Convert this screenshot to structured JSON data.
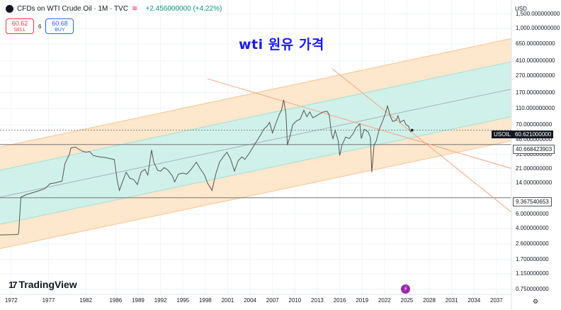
{
  "header": {
    "symbol_title": "CFDs on WTI Crude Oil · 1M · TVC",
    "change": "+2.456000000 (+4.22%)",
    "wave_icon": "wave-icon",
    "sell_price": "60.62",
    "sell_label": "SELL",
    "spread": "6",
    "buy_price": "60.68",
    "buy_label": "BUY"
  },
  "annotation": "wti 원유 가격",
  "currency": "USD",
  "price_labels": {
    "symbol": "USOIL",
    "current": "60.621000000",
    "level_upper": "40.668423903",
    "level_lower": "9.367540653"
  },
  "branding": {
    "name": "TradingView",
    "icon": "tradingview-logo-icon"
  },
  "colors": {
    "outer_band": "#fde3c4",
    "inner_band": "#c8efe6",
    "price_line": "#555555",
    "trendline": "#f4a582",
    "axis_text": "#131722"
  },
  "chart_data": {
    "type": "line",
    "scale": "log",
    "ylim": [
      0.65,
      2200
    ],
    "xlim": [
      1970.5,
      2039
    ],
    "y_ticks": [
      {
        "value": 1500,
        "label": "1,500.000000000"
      },
      {
        "value": 1000,
        "label": "1,000.000000000"
      },
      {
        "value": 650,
        "label": "650.000000000"
      },
      {
        "value": 410,
        "label": "410.000000000"
      },
      {
        "value": 270,
        "label": "270.000000000"
      },
      {
        "value": 170,
        "label": "170.000000000"
      },
      {
        "value": 110,
        "label": "110.000000000"
      },
      {
        "value": 70,
        "label": "70.000000000"
      },
      {
        "value": 46,
        "label": "46.000000000"
      },
      {
        "value": 31,
        "label": "31.000000000"
      },
      {
        "value": 21,
        "label": "21.000000000"
      },
      {
        "value": 14,
        "label": "14.000000000"
      },
      {
        "value": 6,
        "label": "6.000000000"
      },
      {
        "value": 4,
        "label": "4.000000000"
      },
      {
        "value": 2.6,
        "label": "2.600000000"
      },
      {
        "value": 1.7,
        "label": "1.700000000"
      },
      {
        "value": 1.15,
        "label": "1.150000000"
      },
      {
        "value": 0.75,
        "label": "0.750000000"
      }
    ],
    "x_ticks": [
      1972,
      1977,
      1982,
      1986,
      1989,
      1992,
      1995,
      1998,
      2001,
      2004,
      2007,
      2010,
      2013,
      2016,
      2019,
      2022,
      2025,
      2028,
      2031,
      2034,
      2037
    ],
    "series": [
      {
        "values": [
          [
            1970.5,
            3.35
          ],
          [
            1972.9,
            3.4
          ],
          [
            1973.0,
            3.6
          ],
          [
            1973.3,
            9.5
          ],
          [
            1974.0,
            10.2
          ],
          [
            1975.5,
            11.2
          ],
          [
            1976.5,
            12
          ],
          [
            1977.2,
            13.8
          ],
          [
            1978.0,
            14.2
          ],
          [
            1978.8,
            14.8
          ],
          [
            1979.2,
            24
          ],
          [
            1979.8,
            31
          ],
          [
            1980.0,
            37
          ],
          [
            1980.6,
            38
          ],
          [
            1981.0,
            36
          ],
          [
            1981.5,
            34
          ],
          [
            1982.0,
            33
          ],
          [
            1982.5,
            33.5
          ],
          [
            1983.0,
            30
          ],
          [
            1983.8,
            29
          ],
          [
            1984.5,
            28.5
          ],
          [
            1985.3,
            27.5
          ],
          [
            1985.8,
            27
          ],
          [
            1986.2,
            15
          ],
          [
            1986.5,
            11.5
          ],
          [
            1986.9,
            14.5
          ],
          [
            1987.4,
            19
          ],
          [
            1987.9,
            16
          ],
          [
            1988.4,
            15.5
          ],
          [
            1988.9,
            13.5
          ],
          [
            1989.4,
            19
          ],
          [
            1989.9,
            20.5
          ],
          [
            1990.3,
            17.5
          ],
          [
            1990.8,
            35
          ],
          [
            1991.1,
            25
          ],
          [
            1991.6,
            20
          ],
          [
            1992.0,
            19.5
          ],
          [
            1992.5,
            21.5
          ],
          [
            1993.0,
            20
          ],
          [
            1993.6,
            17
          ],
          [
            1993.9,
            14.5
          ],
          [
            1994.4,
            18
          ],
          [
            1995.0,
            18.5
          ],
          [
            1995.5,
            18
          ],
          [
            1996.0,
            20
          ],
          [
            1996.8,
            25
          ],
          [
            1997.3,
            21
          ],
          [
            1997.9,
            17.5
          ],
          [
            1998.3,
            14
          ],
          [
            1998.9,
            11.5
          ],
          [
            1999.4,
            18
          ],
          [
            1999.9,
            25
          ],
          [
            2000.4,
            29
          ],
          [
            2000.9,
            33
          ],
          [
            2001.4,
            27
          ],
          [
            2001.9,
            19.5
          ],
          [
            2002.4,
            26
          ],
          [
            2002.9,
            29
          ],
          [
            2003.3,
            27
          ],
          [
            2003.9,
            32
          ],
          [
            2004.4,
            38
          ],
          [
            2004.9,
            45
          ],
          [
            2005.4,
            53
          ],
          [
            2005.8,
            62
          ],
          [
            2006.3,
            68
          ],
          [
            2006.6,
            75
          ],
          [
            2007.0,
            56
          ],
          [
            2007.5,
            75
          ],
          [
            2007.9,
            93
          ],
          [
            2008.2,
            105
          ],
          [
            2008.5,
            140
          ],
          [
            2008.8,
            95
          ],
          [
            2009.0,
            40
          ],
          [
            2009.3,
            50
          ],
          [
            2009.7,
            70
          ],
          [
            2010.2,
            78
          ],
          [
            2010.7,
            82
          ],
          [
            2011.2,
            105
          ],
          [
            2011.6,
            88
          ],
          [
            2012.0,
            100
          ],
          [
            2012.4,
            85
          ],
          [
            2012.9,
            90
          ],
          [
            2013.3,
            95
          ],
          [
            2013.8,
            100
          ],
          [
            2014.3,
            102
          ],
          [
            2014.6,
            92
          ],
          [
            2014.9,
            55
          ],
          [
            2015.1,
            48
          ],
          [
            2015.4,
            60
          ],
          [
            2015.8,
            45
          ],
          [
            2016.0,
            30
          ],
          [
            2016.3,
            40
          ],
          [
            2016.8,
            50
          ],
          [
            2017.3,
            48
          ],
          [
            2017.8,
            55
          ],
          [
            2018.2,
            65
          ],
          [
            2018.7,
            72
          ],
          [
            2018.9,
            48
          ],
          [
            2019.3,
            62
          ],
          [
            2019.8,
            58
          ],
          [
            2020.1,
            50
          ],
          [
            2020.3,
            19
          ],
          [
            2020.6,
            40
          ],
          [
            2020.9,
            45
          ],
          [
            2021.3,
            62
          ],
          [
            2021.8,
            80
          ],
          [
            2022.1,
            95
          ],
          [
            2022.4,
            118
          ],
          [
            2022.8,
            88
          ],
          [
            2023.1,
            77
          ],
          [
            2023.6,
            80
          ],
          [
            2023.8,
            90
          ],
          [
            2024.1,
            75
          ],
          [
            2024.6,
            80
          ],
          [
            2024.9,
            70
          ],
          [
            2025.2,
            68
          ],
          [
            2025.5,
            58
          ],
          [
            2025.7,
            60.62
          ]
        ]
      }
    ],
    "channel": {
      "mid": [
        [
          1970.5,
          9.5
        ],
        [
          2039,
          188
        ]
      ],
      "inner_top": [
        [
          1970.5,
          20
        ],
        [
          2039,
          400
        ]
      ],
      "inner_bottom": [
        [
          1970.5,
          4.5
        ],
        [
          2039,
          88
        ]
      ],
      "outer_top": [
        [
          1970.5,
          38
        ],
        [
          2039,
          760
        ]
      ],
      "outer_bottom": [
        [
          1970.5,
          2.3
        ],
        [
          2039,
          45
        ]
      ]
    },
    "trendlines": [
      [
        [
          1998.3,
          250
        ],
        [
          2039,
          21
        ]
      ],
      [
        [
          2015.0,
          330
        ],
        [
          2039,
          6.3
        ]
      ]
    ],
    "levels": [
      60.621,
      40.668423903,
      9.367540653
    ]
  }
}
